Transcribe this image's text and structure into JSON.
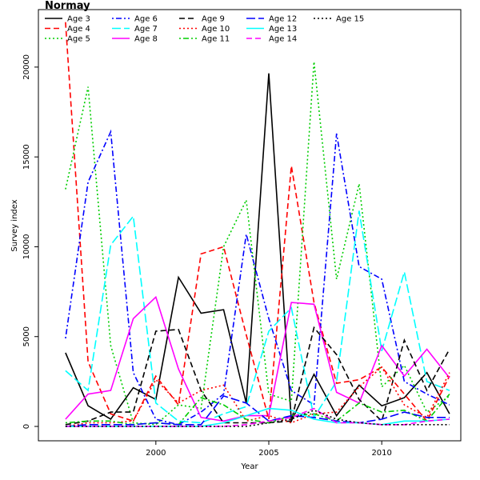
{
  "chart_data": {
    "type": "line",
    "title": "Normay",
    "xlabel": "Year",
    "ylabel": "Survey index",
    "xlim": [
      1994.8,
      2013.5
    ],
    "ylim": [
      -800,
      23200
    ],
    "xticks": [
      2000,
      2005,
      2010
    ],
    "yticks": [
      0,
      5000,
      10000,
      15000,
      20000
    ],
    "grid": false,
    "legend_position": "top-left",
    "x": [
      1996,
      1997,
      1998,
      1999,
      2000,
      2001,
      2002,
      2003,
      2004,
      2005,
      2006,
      2007,
      2008,
      2009,
      2010,
      2011,
      2012,
      2013
    ],
    "series": [
      {
        "name": "Age 3",
        "color": "#000000",
        "dash": "solid",
        "values": [
          4100,
          1150,
          400,
          2150,
          1500,
          8300,
          6300,
          6500,
          1300,
          19650,
          300,
          2900,
          600,
          2300,
          1150,
          1600,
          3000,
          700
        ]
      },
      {
        "name": "Age 4",
        "color": "#ff0000",
        "dash": "dashed",
        "values": [
          22500,
          3600,
          700,
          300,
          2800,
          1200,
          9600,
          10000,
          5100,
          400,
          14500,
          6900,
          2400,
          2600,
          3300,
          1800,
          300,
          2800
        ]
      },
      {
        "name": "Age 5",
        "color": "#00cd00",
        "dash": "dotted",
        "values": [
          13200,
          18900,
          4500,
          200,
          100,
          1200,
          1000,
          10000,
          12600,
          1800,
          1400,
          20300,
          8200,
          13500,
          2200,
          3400,
          800,
          1700
        ]
      },
      {
        "name": "Age 6",
        "color": "#0000ff",
        "dash": "dotdash",
        "values": [
          4900,
          13600,
          16400,
          3000,
          400,
          100,
          800,
          1800,
          10700,
          6000,
          2000,
          1200,
          16300,
          8900,
          8200,
          2500,
          1800,
          1200
        ]
      },
      {
        "name": "Age 7",
        "color": "#00ffff",
        "dash": "longdash",
        "values": [
          3100,
          2000,
          10100,
          11700,
          1300,
          300,
          200,
          700,
          1100,
          5300,
          6600,
          500,
          2500,
          12000,
          4200,
          8600,
          2500,
          2000
        ]
      },
      {
        "name": "Age 8",
        "color": "#ff00ff",
        "dash": "solid",
        "values": [
          400,
          1800,
          2000,
          6000,
          7200,
          3200,
          500,
          300,
          600,
          600,
          6900,
          6800,
          1900,
          1300,
          4500,
          2800,
          4300,
          2700
        ]
      },
      {
        "name": "Age 9",
        "color": "#000000",
        "dash": "dashed",
        "values": [
          100,
          300,
          800,
          800,
          5300,
          5400,
          2000,
          200,
          200,
          200,
          300,
          5500,
          4000,
          1500,
          300,
          4800,
          2000,
          4300
        ]
      },
      {
        "name": "Age 10",
        "color": "#ff0000",
        "dash": "dotted",
        "values": [
          0,
          200,
          200,
          300,
          2600,
          1300,
          2000,
          2300,
          300,
          600,
          200,
          700,
          800,
          2200,
          3300,
          1200,
          500,
          3000
        ]
      },
      {
        "name": "Age 11",
        "color": "#00cd00",
        "dash": "dotdash",
        "values": [
          200,
          300,
          300,
          100,
          200,
          100,
          1600,
          1200,
          400,
          200,
          600,
          700,
          300,
          1300,
          800,
          900,
          300,
          1800
        ]
      },
      {
        "name": "Age 12",
        "color": "#0000ff",
        "dash": "longdash",
        "values": [
          0,
          100,
          100,
          100,
          200,
          100,
          100,
          1700,
          1300,
          300,
          600,
          500,
          300,
          200,
          400,
          800,
          500,
          500
        ]
      },
      {
        "name": "Age 13",
        "color": "#00ffff",
        "dash": "solid",
        "values": [
          0,
          0,
          0,
          0,
          0,
          0,
          0,
          200,
          600,
          1000,
          900,
          400,
          200,
          200,
          100,
          300,
          300,
          400
        ]
      },
      {
        "name": "Age 14",
        "color": "#ff00ff",
        "dash": "dashed",
        "values": [
          0,
          0,
          0,
          0,
          0,
          0,
          0,
          0,
          100,
          300,
          500,
          1000,
          200,
          200,
          100,
          100,
          300,
          400
        ]
      },
      {
        "name": "Age 15",
        "color": "#000000",
        "dash": "dotted",
        "values": [
          0,
          0,
          0,
          0,
          0,
          0,
          0,
          0,
          0,
          200,
          400,
          900,
          400,
          200,
          100,
          100,
          100,
          100
        ]
      }
    ]
  }
}
